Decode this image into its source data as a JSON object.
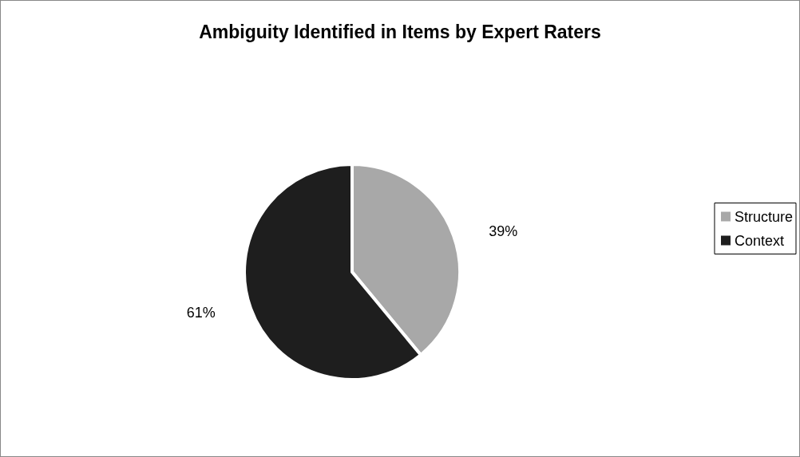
{
  "chart_data": {
    "type": "pie",
    "title": "Ambiguity Identified in Items by Expert Raters",
    "categories": [
      "Structure",
      "Context"
    ],
    "values": [
      39,
      61
    ],
    "colors": [
      "#a8a8a8",
      "#1e1e1e"
    ],
    "value_labels": [
      "39%",
      "61%"
    ],
    "legend": "right"
  }
}
